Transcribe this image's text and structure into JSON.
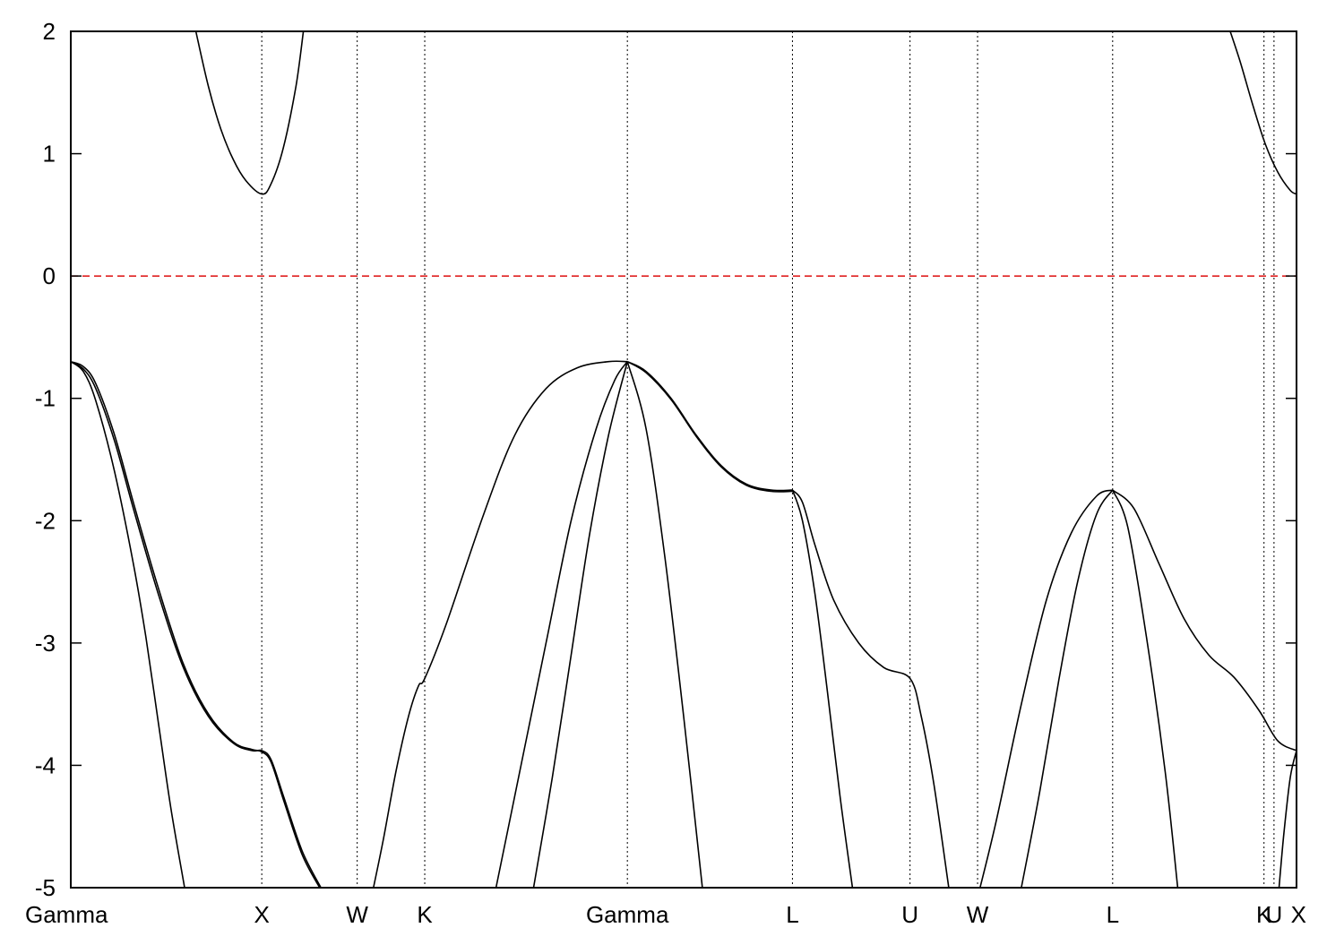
{
  "chart_data": {
    "type": "line",
    "title": "",
    "xlabel": "",
    "ylabel": "",
    "ylim": [
      -5,
      2
    ],
    "xlim": [
      0,
      9.8
    ],
    "y_ticks": [
      "2",
      "1",
      "0",
      "-1",
      "-2",
      "-3",
      "-4",
      "-5"
    ],
    "y_tick_values": [
      2,
      1,
      0,
      -1,
      -2,
      -3,
      -4,
      -5
    ],
    "k_points": [
      {
        "label": "Gamma",
        "x": 0
      },
      {
        "label": "X",
        "x": 1.527
      },
      {
        "label": "W",
        "x": 2.29
      },
      {
        "label": "K",
        "x": 2.83
      },
      {
        "label": "Gamma",
        "x": 4.45
      },
      {
        "label": "L",
        "x": 5.77
      },
      {
        "label": "U",
        "x": 6.71
      },
      {
        "label": "W",
        "x": 7.25
      },
      {
        "label": "L",
        "x": 8.33
      },
      {
        "label": "K",
        "x": 9.54
      },
      {
        "label": "U",
        "x": 9.62
      },
      {
        "label": "X",
        "x": 9.8
      }
    ],
    "fermi_level": {
      "y": 0,
      "color": "#e02020"
    },
    "grid": "vertical dotted lines at k-points",
    "series": [
      {
        "values": [
          [
            1.0,
            2.0
          ],
          [
            1.1,
            1.55
          ],
          [
            1.2,
            1.2
          ],
          [
            1.3,
            0.95
          ],
          [
            1.4,
            0.78
          ],
          [
            1.527,
            0.67
          ],
          [
            1.6,
            0.75
          ],
          [
            1.7,
            1.05
          ],
          [
            1.8,
            1.55
          ],
          [
            1.86,
            2.0
          ]
        ]
      },
      {
        "values": [
          [
            9.27,
            2.0
          ],
          [
            9.35,
            1.75
          ],
          [
            9.45,
            1.4
          ],
          [
            9.55,
            1.08
          ],
          [
            9.65,
            0.85
          ],
          [
            9.75,
            0.7
          ],
          [
            9.8,
            0.67
          ]
        ]
      },
      {
        "values": [
          [
            0,
            -0.7
          ],
          [
            0.1,
            -0.76
          ],
          [
            0.2,
            -0.92
          ],
          [
            0.35,
            -1.35
          ],
          [
            0.5,
            -1.9
          ],
          [
            0.7,
            -2.6
          ],
          [
            0.9,
            -3.2
          ],
          [
            1.1,
            -3.6
          ],
          [
            1.3,
            -3.82
          ],
          [
            1.45,
            -3.88
          ],
          [
            1.527,
            -3.88
          ],
          [
            1.6,
            -3.95
          ],
          [
            1.7,
            -4.25
          ],
          [
            1.85,
            -4.7
          ],
          [
            2.0,
            -5.0
          ]
        ]
      },
      {
        "values": [
          [
            0,
            -0.7
          ],
          [
            0.1,
            -0.74
          ],
          [
            0.2,
            -0.88
          ],
          [
            0.35,
            -1.3
          ],
          [
            0.5,
            -1.85
          ],
          [
            0.7,
            -2.55
          ],
          [
            0.9,
            -3.17
          ],
          [
            1.1,
            -3.58
          ],
          [
            1.3,
            -3.81
          ],
          [
            1.45,
            -3.87
          ],
          [
            1.527,
            -3.89
          ],
          [
            1.6,
            -3.97
          ],
          [
            1.7,
            -4.28
          ],
          [
            1.85,
            -4.73
          ],
          [
            1.99,
            -5.0
          ]
        ]
      },
      {
        "values": [
          [
            0,
            -0.7
          ],
          [
            0.1,
            -0.78
          ],
          [
            0.2,
            -1.02
          ],
          [
            0.35,
            -1.6
          ],
          [
            0.5,
            -2.35
          ],
          [
            0.6,
            -2.95
          ],
          [
            0.7,
            -3.65
          ],
          [
            0.8,
            -4.35
          ],
          [
            0.91,
            -5.0
          ]
        ]
      },
      {
        "values": [
          [
            2.42,
            -5.0
          ],
          [
            2.5,
            -4.6
          ],
          [
            2.6,
            -4.05
          ],
          [
            2.7,
            -3.6
          ],
          [
            2.78,
            -3.35
          ],
          [
            2.83,
            -3.29
          ],
          [
            3.0,
            -2.85
          ],
          [
            3.3,
            -1.95
          ],
          [
            3.55,
            -1.3
          ],
          [
            3.8,
            -0.92
          ],
          [
            4.05,
            -0.75
          ],
          [
            4.3,
            -0.7
          ],
          [
            4.45,
            -0.7
          ]
        ]
      },
      {
        "values": [
          [
            3.4,
            -5.0
          ],
          [
            3.6,
            -4.0
          ],
          [
            3.8,
            -3.0
          ],
          [
            4.0,
            -2.0
          ],
          [
            4.2,
            -1.25
          ],
          [
            4.35,
            -0.85
          ],
          [
            4.45,
            -0.7
          ]
        ]
      },
      {
        "values": [
          [
            3.7,
            -5.0
          ],
          [
            3.85,
            -4.1
          ],
          [
            4.0,
            -3.1
          ],
          [
            4.15,
            -2.1
          ],
          [
            4.3,
            -1.3
          ],
          [
            4.45,
            -0.7
          ]
        ]
      },
      {
        "values": [
          [
            4.45,
            -0.7
          ],
          [
            4.6,
            -1.25
          ],
          [
            4.75,
            -2.3
          ],
          [
            4.9,
            -3.6
          ],
          [
            5.05,
            -5.0
          ]
        ]
      },
      {
        "values": [
          [
            4.45,
            -0.7
          ],
          [
            4.6,
            -0.78
          ],
          [
            4.8,
            -1.0
          ],
          [
            5.0,
            -1.3
          ],
          [
            5.2,
            -1.55
          ],
          [
            5.4,
            -1.7
          ],
          [
            5.6,
            -1.75
          ],
          [
            5.77,
            -1.75
          ]
        ]
      },
      {
        "values": [
          [
            4.45,
            -0.7
          ],
          [
            4.6,
            -0.79
          ],
          [
            4.8,
            -1.01
          ],
          [
            5.0,
            -1.31
          ],
          [
            5.2,
            -1.56
          ],
          [
            5.4,
            -1.71
          ],
          [
            5.6,
            -1.76
          ],
          [
            5.77,
            -1.76
          ]
        ]
      },
      {
        "values": [
          [
            5.77,
            -1.75
          ],
          [
            5.85,
            -1.85
          ],
          [
            5.95,
            -2.2
          ],
          [
            6.1,
            -2.65
          ],
          [
            6.3,
            -3.0
          ],
          [
            6.5,
            -3.2
          ],
          [
            6.71,
            -3.29
          ],
          [
            6.8,
            -3.6
          ],
          [
            6.9,
            -4.15
          ],
          [
            7.02,
            -5.0
          ]
        ]
      },
      {
        "values": [
          [
            5.77,
            -1.75
          ],
          [
            5.85,
            -2.0
          ],
          [
            5.95,
            -2.6
          ],
          [
            6.05,
            -3.4
          ],
          [
            6.15,
            -4.25
          ],
          [
            6.25,
            -5.0
          ]
        ]
      },
      {
        "values": [
          [
            7.27,
            -5.0
          ],
          [
            7.4,
            -4.45
          ],
          [
            7.6,
            -3.5
          ],
          [
            7.8,
            -2.65
          ],
          [
            8.0,
            -2.1
          ],
          [
            8.2,
            -1.8
          ],
          [
            8.33,
            -1.75
          ]
        ]
      },
      {
        "values": [
          [
            7.6,
            -5.0
          ],
          [
            7.75,
            -4.2
          ],
          [
            7.9,
            -3.3
          ],
          [
            8.05,
            -2.5
          ],
          [
            8.2,
            -1.95
          ],
          [
            8.33,
            -1.75
          ]
        ]
      },
      {
        "values": [
          [
            8.33,
            -1.75
          ],
          [
            8.45,
            -2.05
          ],
          [
            8.6,
            -2.95
          ],
          [
            8.75,
            -4.05
          ],
          [
            8.85,
            -5.0
          ]
        ]
      },
      {
        "values": [
          [
            8.33,
            -1.75
          ],
          [
            8.5,
            -1.9
          ],
          [
            8.7,
            -2.35
          ],
          [
            8.9,
            -2.8
          ],
          [
            9.1,
            -3.1
          ],
          [
            9.3,
            -3.28
          ],
          [
            9.5,
            -3.55
          ],
          [
            9.65,
            -3.8
          ],
          [
            9.8,
            -3.88
          ]
        ]
      },
      {
        "values": [
          [
            9.66,
            -5.0
          ],
          [
            9.7,
            -4.55
          ],
          [
            9.75,
            -4.1
          ],
          [
            9.8,
            -3.88
          ]
        ]
      }
    ]
  }
}
